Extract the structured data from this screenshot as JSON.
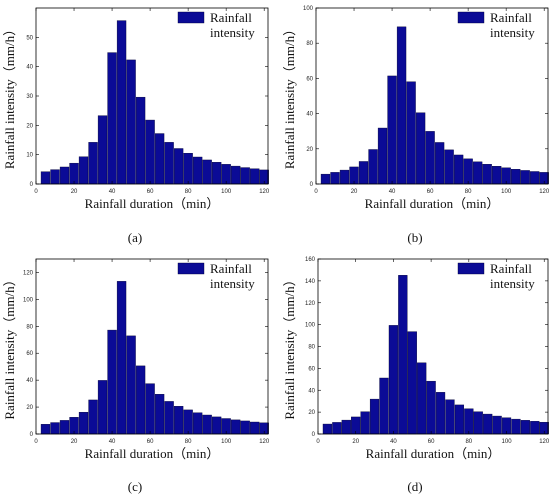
{
  "colors": {
    "bar_fill": "#0b0b96",
    "bar_stroke": "#000033",
    "axis": "#000000"
  },
  "chart_data": [
    {
      "panel": "a",
      "caption": "(a)",
      "type": "bar",
      "x": [
        5,
        10,
        15,
        20,
        25,
        30,
        35,
        40,
        45,
        50,
        55,
        60,
        65,
        70,
        75,
        80,
        85,
        90,
        95,
        100,
        105,
        110,
        115,
        120
      ],
      "values": [
        4.2,
        4.9,
        5.8,
        7.1,
        9.3,
        14.2,
        23.3,
        44.8,
        55.7,
        42.3,
        29.6,
        21.8,
        17.2,
        14.2,
        12.1,
        10.5,
        9.2,
        8.2,
        7.4,
        6.7,
        6.1,
        5.6,
        5.2,
        4.8
      ],
      "series": [
        {
          "name": "Rainfall intensity"
        }
      ],
      "legend_lines": [
        "Rainfall",
        "intensity"
      ],
      "xlabel": "Rainfall duration（min）",
      "ylabel": "Rainfall intensity（mm/h）",
      "xlim": [
        0,
        122
      ],
      "ylim": [
        0,
        60
      ],
      "xticks": [
        0,
        20,
        40,
        60,
        80,
        100,
        120
      ],
      "yticks": [
        0,
        10,
        20,
        30,
        40,
        50
      ],
      "legend": "top-right",
      "grid": false
    },
    {
      "panel": "b",
      "caption": "(b)",
      "type": "bar",
      "x": [
        5,
        10,
        15,
        20,
        25,
        30,
        35,
        40,
        45,
        50,
        55,
        60,
        65,
        70,
        75,
        80,
        85,
        90,
        95,
        100,
        105,
        110,
        115,
        120
      ],
      "values": [
        5.6,
        6.6,
        7.9,
        9.7,
        12.8,
        19.6,
        31.8,
        61.4,
        89.3,
        58.1,
        40.5,
        29.9,
        23.6,
        19.4,
        16.5,
        14.3,
        12.6,
        11.2,
        10.1,
        9.2,
        8.4,
        7.7,
        7.1,
        6.6
      ],
      "series": [
        {
          "name": "Rainfall intensity"
        }
      ],
      "legend_lines": [
        "Rainfall",
        "intensity"
      ],
      "xlabel": "Rainfall duration（min）",
      "ylabel": "Rainfall intensity（mm/h）",
      "xlim": [
        0,
        122
      ],
      "ylim": [
        0,
        100
      ],
      "xticks": [
        0,
        20,
        40,
        60,
        80,
        100,
        120
      ],
      "yticks": [
        0,
        20,
        40,
        60,
        80,
        100
      ],
      "legend": "top-right",
      "grid": false
    },
    {
      "panel": "c",
      "caption": "(c)",
      "type": "bar",
      "x": [
        5,
        10,
        15,
        20,
        25,
        30,
        35,
        40,
        45,
        50,
        55,
        60,
        65,
        70,
        75,
        80,
        85,
        90,
        95,
        100,
        105,
        110,
        115,
        120
      ],
      "values": [
        7.2,
        8.5,
        10.1,
        12.4,
        16.2,
        25.3,
        39.8,
        77.2,
        113.4,
        72.9,
        50.6,
        37.4,
        29.5,
        24.2,
        20.6,
        17.9,
        15.8,
        14.1,
        12.7,
        11.5,
        10.5,
        9.7,
        8.9,
        8.3
      ],
      "series": [
        {
          "name": "Rainfall intensity"
        }
      ],
      "legend_lines": [
        "Rainfall",
        "intensity"
      ],
      "xlabel": "Rainfall duration（min）",
      "ylabel": "Rainfall intensity（mm/h）",
      "xlim": [
        0,
        122
      ],
      "ylim": [
        0,
        130
      ],
      "xticks": [
        0,
        20,
        40,
        60,
        80,
        100,
        120
      ],
      "yticks": [
        0,
        20,
        40,
        60,
        80,
        100,
        120
      ],
      "legend": "top-right",
      "grid": false
    },
    {
      "panel": "d",
      "caption": "(d)",
      "type": "bar",
      "x": [
        5,
        10,
        15,
        20,
        25,
        30,
        35,
        40,
        45,
        50,
        55,
        60,
        65,
        70,
        75,
        80,
        85,
        90,
        95,
        100,
        105,
        110,
        115,
        120
      ],
      "values": [
        9.1,
        10.6,
        12.7,
        15.6,
        20.4,
        31.9,
        51.2,
        99.3,
        145.1,
        93.6,
        65.1,
        48.3,
        38.1,
        31.3,
        26.6,
        23.1,
        20.4,
        18.2,
        16.4,
        14.9,
        13.6,
        12.5,
        11.6,
        10.8
      ],
      "series": [
        {
          "name": "Rainfall intensity"
        }
      ],
      "legend_lines": [
        "Rainfall",
        "intensity"
      ],
      "xlabel": "Rainfall duration（min）",
      "ylabel": "Rainfall intensity（mm/h）",
      "xlim": [
        0,
        122
      ],
      "ylim": [
        0,
        160
      ],
      "xticks": [
        0,
        20,
        40,
        60,
        80,
        100,
        120
      ],
      "yticks": [
        0,
        20,
        40,
        60,
        80,
        100,
        120,
        140,
        160
      ],
      "legend": "top-right",
      "grid": false
    }
  ]
}
